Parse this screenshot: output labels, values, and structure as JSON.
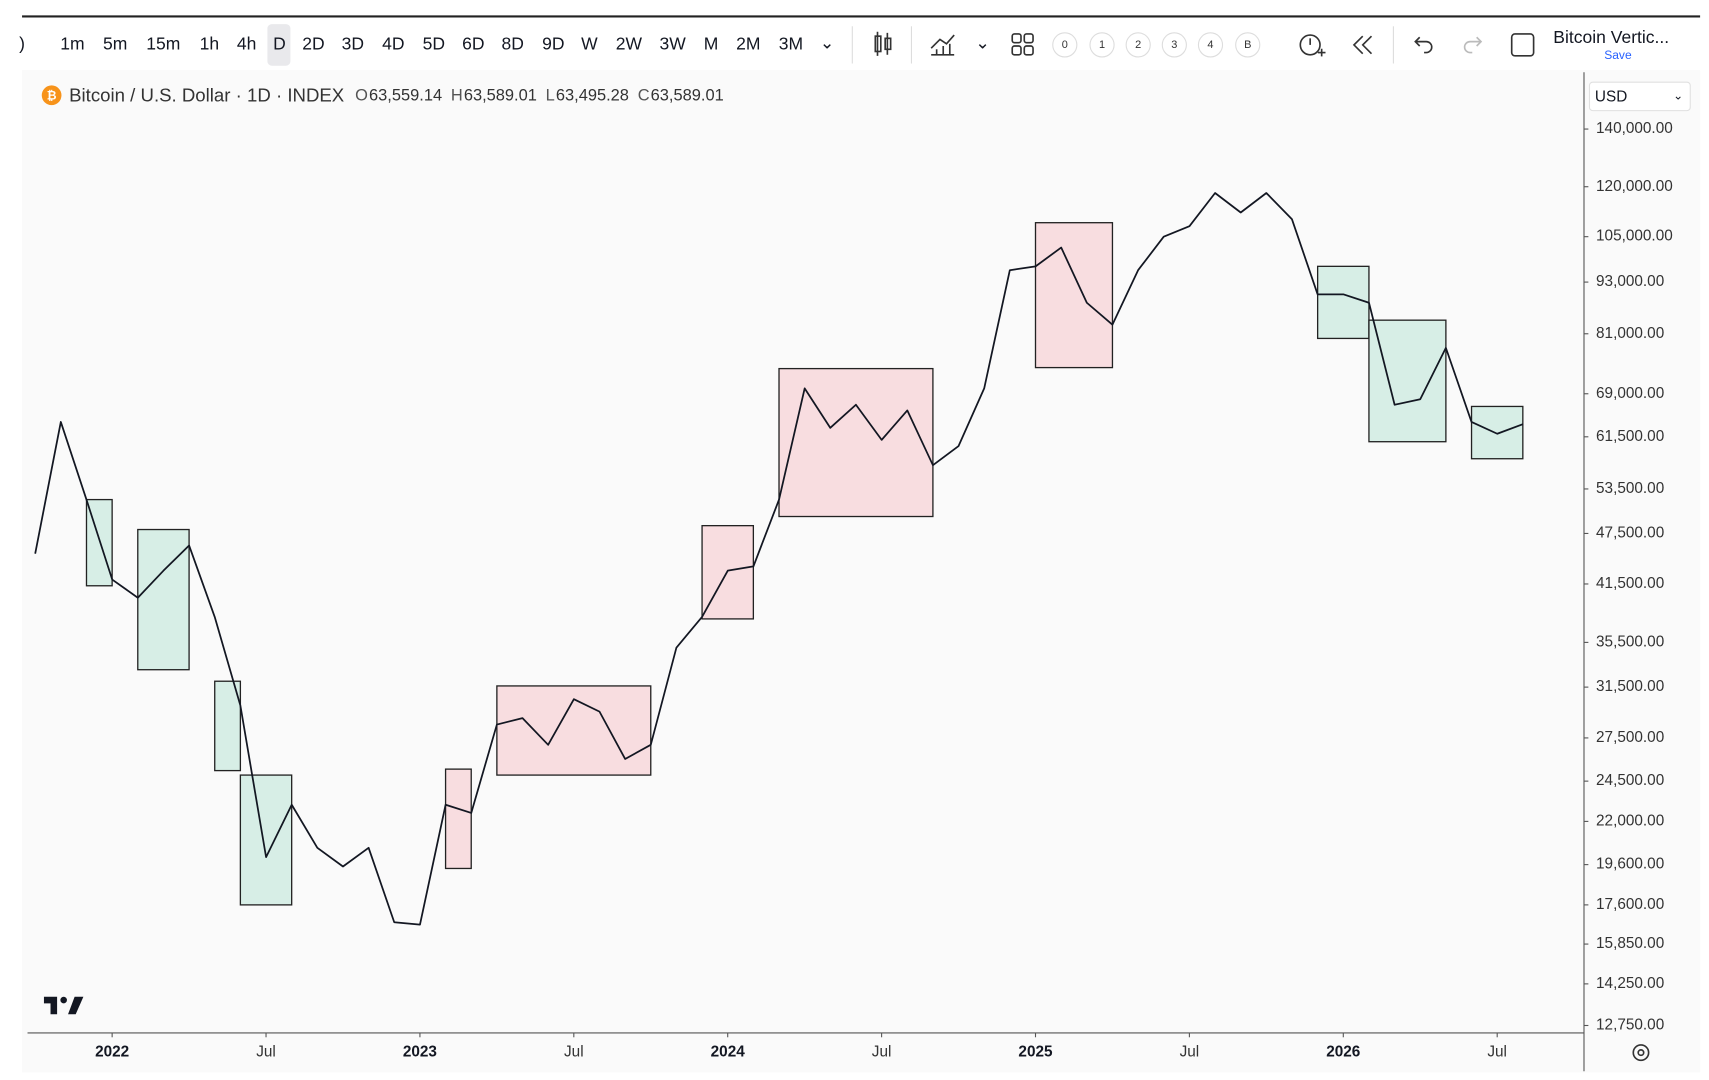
{
  "toolbar": {
    "intervals": [
      ")",
      "1m",
      "5m",
      "15m",
      "1h",
      "4h",
      "D",
      "2D",
      "3D",
      "4D",
      "5D",
      "6D",
      "8D",
      "9D",
      "W",
      "2W",
      "3W",
      "M",
      "2M",
      "3M"
    ],
    "layout_slots": [
      "0",
      "1",
      "2",
      "3",
      "4",
      "B"
    ],
    "layout_name": "Bitcoin Vertic...",
    "save": "Save"
  },
  "legend": {
    "symbol": "Bitcoin / U.S. Dollar · 1D · INDEX",
    "open_label": "O",
    "open": "63,559.14",
    "high_label": "H",
    "high": "63,589.01",
    "low_label": "L",
    "low": "63,495.28",
    "close_label": "C",
    "close": "63,589.01"
  },
  "currency": "USD",
  "chart_data": {
    "type": "line",
    "log_scale": true,
    "grid": false,
    "color": "#131722",
    "x": [
      "2021-10",
      "2021-11",
      "2021-12",
      "2022-01",
      "2022-02",
      "2022-03",
      "2022-04",
      "2022-05",
      "2022-06",
      "2022-07",
      "2022-08",
      "2022-09",
      "2022-10",
      "2022-11",
      "2022-12",
      "2023-01",
      "2023-02",
      "2023-03",
      "2023-04",
      "2023-05",
      "2023-06",
      "2023-07",
      "2023-08",
      "2023-09",
      "2023-10",
      "2023-11",
      "2023-12",
      "2024-01",
      "2024-02",
      "2024-03",
      "2024-04",
      "2024-05",
      "2024-06",
      "2024-07",
      "2024-08",
      "2024-09",
      "2024-10",
      "2024-11",
      "2024-12",
      "2025-01",
      "2025-02",
      "2025-03",
      "2025-04",
      "2025-05",
      "2025-06",
      "2025-07",
      "2025-08",
      "2025-09",
      "2025-10",
      "2025-11",
      "2025-12",
      "2026-01",
      "2026-02",
      "2026-03",
      "2026-04",
      "2026-05",
      "2026-06",
      "2026-07",
      "2026-08"
    ],
    "values": [
      45000,
      64000,
      52000,
      42000,
      40000,
      43000,
      46000,
      38000,
      30000,
      20000,
      23000,
      20500,
      19500,
      20500,
      16800,
      16700,
      23000,
      22500,
      28500,
      29000,
      27000,
      30500,
      29500,
      26000,
      27000,
      35000,
      38000,
      43000,
      43500,
      52000,
      70000,
      63000,
      67000,
      61000,
      66000,
      57000,
      60000,
      70000,
      96000,
      97000,
      102000,
      88000,
      83000,
      96000,
      105000,
      108000,
      118000,
      112000,
      118000,
      110000,
      90000,
      90000,
      88000,
      67000,
      68000,
      78000,
      64000,
      62000,
      63600
    ],
    "xlim": [
      "2021-10",
      "2026-10"
    ],
    "xticks": [
      {
        "value": "2022-01",
        "label": "2022"
      },
      {
        "value": "2022-07",
        "label": "Jul"
      },
      {
        "value": "2023-01",
        "label": "2023"
      },
      {
        "value": "2023-07",
        "label": "Jul"
      },
      {
        "value": "2024-01",
        "label": "2024"
      },
      {
        "value": "2024-07",
        "label": "Jul"
      },
      {
        "value": "2025-01",
        "label": "2025"
      },
      {
        "value": "2025-07",
        "label": "Jul"
      },
      {
        "value": "2026-01",
        "label": "2026"
      },
      {
        "value": "2026-07",
        "label": "Jul"
      }
    ],
    "ylim": [
      12500,
      147500
    ],
    "yticks": [
      {
        "value": 140000,
        "label": "140,000.00"
      },
      {
        "value": 120000,
        "label": "120,000.00"
      },
      {
        "value": 105000,
        "label": "105,000.00"
      },
      {
        "value": 93000,
        "label": "93,000.00"
      },
      {
        "value": 81000,
        "label": "81,000.00"
      },
      {
        "value": 69000,
        "label": "69,000.00"
      },
      {
        "value": 61500,
        "label": "61,500.00"
      },
      {
        "value": 53500,
        "label": "53,500.00"
      },
      {
        "value": 47500,
        "label": "47,500.00"
      },
      {
        "value": 41500,
        "label": "41,500.00"
      },
      {
        "value": 35500,
        "label": "35,500.00"
      },
      {
        "value": 31500,
        "label": "31,500.00"
      },
      {
        "value": 27500,
        "label": "27,500.00"
      },
      {
        "value": 24500,
        "label": "24,500.00"
      },
      {
        "value": 22000,
        "label": "22,000.00"
      },
      {
        "value": 19600,
        "label": "19,600.00"
      },
      {
        "value": 17600,
        "label": "17,600.00"
      },
      {
        "value": 15850,
        "label": "15,850.00"
      },
      {
        "value": 14250,
        "label": "14,250.00"
      },
      {
        "value": 12750,
        "label": "12,750.00"
      }
    ],
    "boxes": [
      {
        "x0": "2021-12",
        "x1": "2022-01",
        "low": 41300,
        "high": 52000,
        "color": "#d7eee6"
      },
      {
        "x0": "2022-02",
        "x1": "2022-04",
        "low": 33000,
        "high": 48000,
        "color": "#d7eee6"
      },
      {
        "x0": "2022-05",
        "x1": "2022-06",
        "low": 25200,
        "high": 32000,
        "color": "#d7eee6"
      },
      {
        "x0": "2022-06",
        "x1": "2022-08",
        "low": 17600,
        "high": 24900,
        "color": "#d7eee6"
      },
      {
        "x0": "2023-02",
        "x1": "2023-03",
        "low": 19400,
        "high": 25300,
        "color": "#f8dde0"
      },
      {
        "x0": "2023-04",
        "x1": "2023-10",
        "low": 24900,
        "high": 31600,
        "color": "#f8dde0"
      },
      {
        "x0": "2023-12",
        "x1": "2024-02",
        "low": 37800,
        "high": 48500,
        "color": "#f8dde0"
      },
      {
        "x0": "2024-03",
        "x1": "2024-09",
        "low": 49700,
        "high": 73800,
        "color": "#f8dde0"
      },
      {
        "x0": "2025-01",
        "x1": "2025-04",
        "low": 74000,
        "high": 109000,
        "color": "#f8dde0"
      },
      {
        "x0": "2025-12",
        "x1": "2026-02",
        "low": 80000,
        "high": 97000,
        "color": "#d7eee6"
      },
      {
        "x0": "2026-02",
        "x1": "2026-05",
        "low": 60700,
        "high": 84000,
        "color": "#d7eee6"
      },
      {
        "x0": "2026-06",
        "x1": "2026-08",
        "low": 58000,
        "high": 66700,
        "color": "#d7eee6"
      }
    ]
  }
}
